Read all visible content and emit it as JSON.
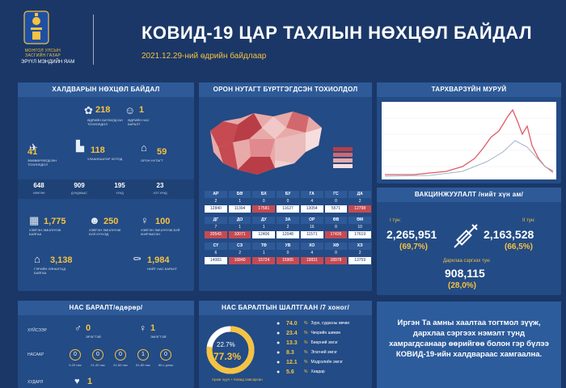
{
  "header": {
    "org_line1": "МОНГОЛ УЛСЫН ЗАСГИЙН ГАЗАР",
    "org_line2": "ЭРҮҮЛ МЭНДИЙН ЯАМ",
    "title": "КОВИД-19 ЦАР ТАХЛЫН НӨХЦӨЛ БАЙДАЛ",
    "subtitle": "2021.12.29-ний өдрийн байдлаар"
  },
  "infection": {
    "title": "ХАЛДВАРЫН НӨХЦӨЛ БАЙДАЛ",
    "daily_confirmed": {
      "value": "218",
      "label": "ӨДРИЙН БАТЛАГДСАН ТОХИОЛДОЛ"
    },
    "daily_deaths": {
      "value": "1",
      "label": "ӨДРИЙН НАС БАРАЛТ"
    },
    "imported": {
      "value": "41",
      "label": "ЗӨӨВӨРЛӨГДСӨН ТОХИОЛДОЛ"
    },
    "ulaanbaatar": {
      "value": "118",
      "label": "УЛААНБААТАР ХОТОД"
    },
    "rural": {
      "value": "59",
      "label": "ОРОН НУТАГТ"
    },
    "districts": [
      {
        "value": "648",
        "label": "ХӨНГӨН"
      },
      {
        "value": "909",
        "label": "ДУНДЖААС"
      },
      {
        "value": "195",
        "label": "ХҮНД"
      },
      {
        "value": "23",
        "label": "ХЭТ ХҮНД"
      }
    ],
    "hospital": {
      "value": "1,775",
      "label": "ХЭВТЭН ЭМЧЛҮҮЛЖ БАЙГАА"
    },
    "children": {
      "value": "250",
      "label": "ХЭВТЭН ЭМЧЛҮҮЛЖ БУЙ ХҮҮХЭД"
    },
    "pregnant": {
      "value": "100",
      "label": "ХЭВТЭН ЭМЧЛҮҮЛЖ БУЙ ЖИРЭМСЭН"
    },
    "home": {
      "value": "3,138",
      "label": "ГЭРИЙН ХЯНАЛТАД БАЙГАА"
    },
    "total_deaths": {
      "value": "1,984",
      "label": "НИЙТ НАС БАРАЛТ"
    }
  },
  "map_panel": {
    "title": "ОРОН НУТАГТ БҮРТГЭГДСЭН ТОХИОЛДОЛ",
    "legend": [
      "АР",
      "0000",
      "0000",
      "0000"
    ],
    "rows": [
      {
        "head": [
          "АР",
          "БӨ",
          "БХ",
          "БУ",
          "ГА",
          "ГС",
          "ДА"
        ],
        "day": [
          "2",
          "1",
          "0",
          "0",
          "4",
          "0",
          "2"
        ],
        "total": [
          "12840",
          "11304",
          "17581",
          "11627",
          "13054",
          "5571",
          "12798"
        ],
        "hot": [
          false,
          false,
          true,
          false,
          false,
          false,
          true
        ]
      },
      {
        "head": [
          "ДГ",
          "ДО",
          "ДУ",
          "ЗА",
          "ОР",
          "ӨВ",
          "ӨМ"
        ],
        "day": [
          "7",
          "1",
          "1",
          "2",
          "16",
          "0",
          "10"
        ],
        "total": [
          "20543",
          "10071",
          "12406",
          "12048",
          "11571",
          "17426",
          "17619"
        ],
        "hot": [
          true,
          true,
          false,
          false,
          false,
          true,
          false
        ]
      },
      {
        "head": [
          "СҮ",
          "СЭ",
          "ТӨ",
          "УВ",
          "ХО",
          "ХӨ",
          "ХЭ"
        ],
        "day": [
          "6",
          "2",
          "1",
          "0",
          "4",
          "0",
          "2"
        ],
        "total": [
          "14083",
          "16840",
          "15724",
          "15905",
          "19831",
          "18978",
          "13759"
        ],
        "hot": [
          false,
          true,
          true,
          true,
          true,
          true,
          false
        ]
      }
    ]
  },
  "curve": {
    "title": "ТАРХВАРЗҮЙН МУРУЙ"
  },
  "vaccine": {
    "title": "ВАКЦИНЖУУЛАЛТ /нийт хүн ам/",
    "dose1_label": "I тун:",
    "dose1_value": "2,265,951",
    "dose1_pct": "(69,7%)",
    "dose2_label": "II тун:",
    "dose2_value": "2,163,528",
    "dose2_pct": "(66,5%)",
    "booster_label": "Дархлаа сэргээх тун:",
    "booster_value": "908,115",
    "booster_pct": "(28,0%)"
  },
  "age_deaths": {
    "title": "НАС БАРАЛТ/өдөрөр/",
    "rows": [
      "ХҮЙСЭЭР",
      "НАСААР",
      "ХУДАРЛ"
    ],
    "male": {
      "value": "0",
      "label": "ЭРЭГТЭЙ"
    },
    "female": {
      "value": "1",
      "label": "ЭМЭГТЭЙ"
    },
    "ages": [
      {
        "value": "0",
        "label": "0-20 нас"
      },
      {
        "value": "0",
        "label": "21-40 нас"
      },
      {
        "value": "0",
        "label": "41-60 нас"
      },
      {
        "value": "1",
        "label": "61-80 нас"
      },
      {
        "value": "0",
        "label": "80-с дээш"
      }
    ],
    "cause_value": "1"
  },
  "causes": {
    "title": "НАС БАРАЛТЫН ШАЛТГААН /7 хоног/",
    "ring_outer": "22.7",
    "ring_inner": "77.3",
    "ring_unit": "%",
    "ring_label": "Архаг хууч + Ковид хавсарсан",
    "items": [
      {
        "pct": "74.0",
        "label": "Зүрх, судасны өвчин"
      },
      {
        "pct": "23.4",
        "label": "Чихрийн шижин"
      },
      {
        "pct": "13.3",
        "label": "Бөөрний эмгэг"
      },
      {
        "pct": "8.3",
        "label": "Элэгний эмгэг"
      },
      {
        "pct": "12.1",
        "label": "Мэдрэлийн эмгэг"
      },
      {
        "pct": "5.6",
        "label": "Хавдар"
      }
    ]
  },
  "message": "Иргэн Та амны хаалтаа тогтмол зүүж, дархлаа сэргээх нэмэлт тунд хамрагдсанаар өөрийгөө болон гэр бүлээ КОВИД-19-ийн халдвараас хамгаална.",
  "colors": {
    "background": "#1a3767",
    "panel": "#234b85",
    "accent": "#f5c242",
    "hot": "#c54a52"
  }
}
